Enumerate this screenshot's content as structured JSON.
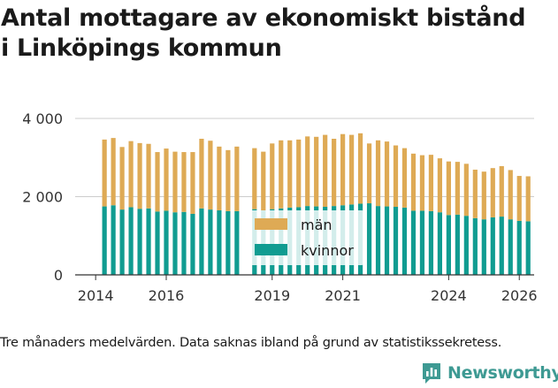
{
  "title": [
    "Antal mottagare av ekonomiskt bistånd",
    "i Linköpings kommun"
  ],
  "caption": "Tre månaders medelvärden. Data saknas ibland på grund av statistikssekretess.",
  "brand": "Newsworthy",
  "colors": {
    "man": "#deaa55",
    "kvinnor": "#109c91",
    "grid": "#cccccc",
    "axis": "#333333",
    "brand": "#3e9a93"
  },
  "chart_data": {
    "type": "bar",
    "stacked": true,
    "title": "Antal mottagare av ekonomiskt bistånd i Linköpings kommun",
    "xlabel": "",
    "ylabel": "",
    "ylim": [
      0,
      4000
    ],
    "yticks": [
      0,
      2000,
      4000
    ],
    "ytick_labels": [
      "0",
      "2 000",
      "4 000"
    ],
    "xticks": [
      2014,
      2016,
      2019,
      2021,
      2024,
      2026
    ],
    "xtick_labels": [
      "2014",
      "2016",
      "2019",
      "2021",
      "2024",
      "2026"
    ],
    "x_range": [
      2013.42,
      2026.42
    ],
    "grid": true,
    "legend": "inside, lower middle",
    "x": [
      2014.25,
      2014.5,
      2014.75,
      2015,
      2015.25,
      2015.5,
      2015.75,
      2016,
      2016.25,
      2016.5,
      2016.75,
      2017,
      2017.25,
      2017.5,
      2017.75,
      2018,
      2018.5,
      2018.75,
      2019,
      2019.25,
      2019.5,
      2019.75,
      2020,
      2020.25,
      2020.5,
      2020.75,
      2021,
      2021.25,
      2021.5,
      2021.75,
      2022,
      2022.25,
      2022.5,
      2022.75,
      2023,
      2023.25,
      2023.5,
      2023.75,
      2024,
      2024.25,
      2024.5,
      2024.75,
      2025,
      2025.25,
      2025.5,
      2025.75,
      2026,
      2026.25
    ],
    "series": [
      {
        "name": "kvinnor",
        "color": "#109c91",
        "values": [
          1750,
          1780,
          1670,
          1730,
          1690,
          1700,
          1620,
          1640,
          1600,
          1610,
          1560,
          1700,
          1670,
          1650,
          1630,
          1630,
          1680,
          1650,
          1680,
          1700,
          1720,
          1730,
          1760,
          1750,
          1740,
          1760,
          1780,
          1800,
          1820,
          1830,
          1760,
          1750,
          1740,
          1720,
          1640,
          1640,
          1630,
          1600,
          1530,
          1540,
          1510,
          1450,
          1420,
          1470,
          1490,
          1420,
          1380,
          1370
        ]
      },
      {
        "name": "män",
        "color": "#deaa55",
        "values": [
          1710,
          1720,
          1600,
          1690,
          1680,
          1650,
          1520,
          1590,
          1550,
          1530,
          1580,
          1780,
          1760,
          1630,
          1560,
          1650,
          1560,
          1500,
          1680,
          1740,
          1720,
          1730,
          1780,
          1780,
          1840,
          1720,
          1820,
          1780,
          1800,
          1530,
          1680,
          1660,
          1570,
          1520,
          1460,
          1420,
          1440,
          1380,
          1370,
          1350,
          1330,
          1240,
          1220,
          1260,
          1290,
          1260,
          1150,
          1150
        ]
      }
    ]
  }
}
